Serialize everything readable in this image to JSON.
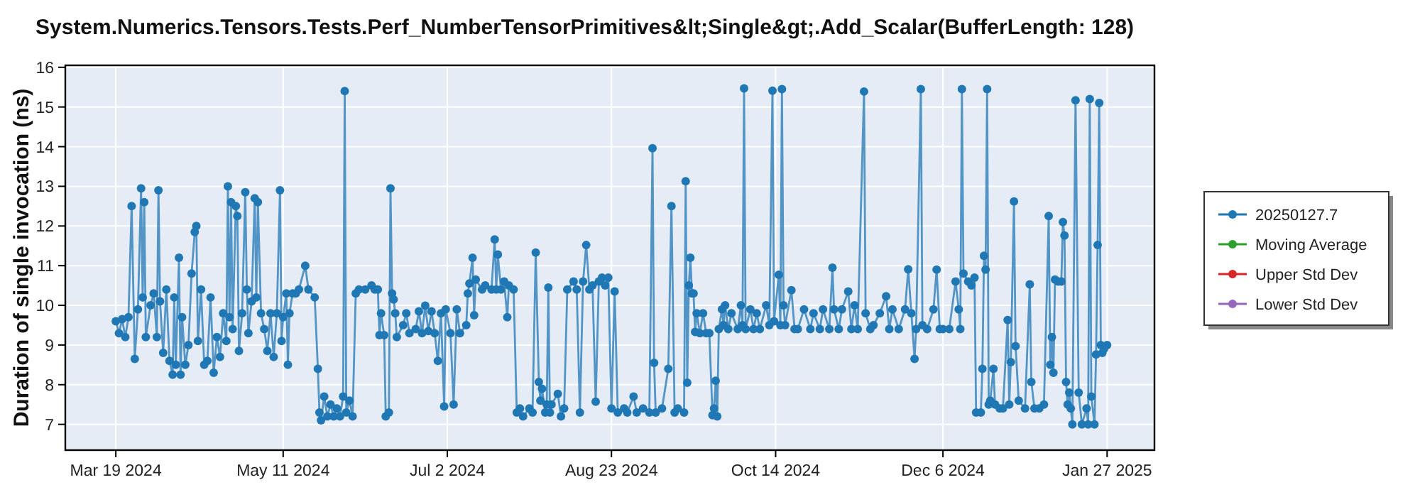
{
  "chart_data": {
    "type": "line",
    "title": "System.Numerics.Tensors.Tests.Perf_NumberTensorPrimitives&lt;Single&gt;.Add_Scalar(BufferLength: 128)",
    "ylabel": "Duration of single invocation (ns)",
    "xlim": [
      "2024-03-03",
      "2025-02-11"
    ],
    "ylim": [
      6.35,
      16.05
    ],
    "xticks": [
      {
        "value": "2024-03-19",
        "label": "Mar 19 2024"
      },
      {
        "value": "2024-05-11",
        "label": "May 11 2024"
      },
      {
        "value": "2024-07-02",
        "label": "Jul 2 2024"
      },
      {
        "value": "2024-08-23",
        "label": "Aug 23 2024"
      },
      {
        "value": "2024-10-14",
        "label": "Oct 14 2024"
      },
      {
        "value": "2024-12-06",
        "label": "Dec 6 2024"
      },
      {
        "value": "2025-01-27",
        "label": "Jan 27 2025"
      }
    ],
    "yticks": [
      7,
      8,
      9,
      10,
      11,
      12,
      13,
      14,
      15,
      16
    ],
    "grid": true,
    "legend": "right",
    "marker": "circle",
    "line_style": "solid",
    "series": [
      {
        "name": "20250127.7",
        "color": "#1f77b4",
        "x": [
          "2024-03-19",
          "2024-03-20",
          "2024-03-21",
          "2024-03-22",
          "2024-03-23",
          "2024-03-24",
          "2024-03-25",
          "2024-03-26",
          "2024-03-27",
          "2024-03-27T12:00",
          "2024-03-28",
          "2024-03-28T12:00",
          "2024-03-30",
          "2024-03-31",
          "2024-04-01",
          "2024-04-01T12:00",
          "2024-04-02",
          "2024-04-03",
          "2024-04-04",
          "2024-04-05",
          "2024-04-06",
          "2024-04-06T12:00",
          "2024-04-07",
          "2024-04-08",
          "2024-04-08T12:00",
          "2024-04-09",
          "2024-04-10",
          "2024-04-11",
          "2024-04-12",
          "2024-04-13",
          "2024-04-13T12:00",
          "2024-04-14",
          "2024-04-15",
          "2024-04-16",
          "2024-04-17",
          "2024-04-18",
          "2024-04-19",
          "2024-04-20",
          "2024-04-21",
          "2024-04-22",
          "2024-04-23",
          "2024-04-23T12:00",
          "2024-04-24",
          "2024-04-24T12:00",
          "2024-04-25",
          "2024-04-26",
          "2024-04-26T12:00",
          "2024-04-27",
          "2024-04-28",
          "2024-04-29",
          "2024-04-29T12:00",
          "2024-04-30",
          "2024-05-01",
          "2024-05-02",
          "2024-05-02T12:00",
          "2024-05-03",
          "2024-05-04",
          "2024-05-05",
          "2024-05-06",
          "2024-05-07",
          "2024-05-08",
          "2024-05-09",
          "2024-05-10",
          "2024-05-10T12:00",
          "2024-05-11",
          "2024-05-12",
          "2024-05-12T12:00",
          "2024-05-13",
          "2024-05-14",
          "2024-05-15",
          "2024-05-16",
          "2024-05-18",
          "2024-05-19",
          "2024-05-21",
          "2024-05-22",
          "2024-05-22T12:00",
          "2024-05-23",
          "2024-05-24",
          "2024-05-25",
          "2024-05-26",
          "2024-05-27",
          "2024-05-28",
          "2024-05-29",
          "2024-05-30",
          "2024-05-30T12:00",
          "2024-05-31",
          "2024-06-01",
          "2024-06-02",
          "2024-06-03",
          "2024-06-04",
          "2024-06-06",
          "2024-06-08",
          "2024-06-09",
          "2024-06-10",
          "2024-06-10T12:00",
          "2024-06-11",
          "2024-06-12",
          "2024-06-12T12:00",
          "2024-06-13T12:00",
          "2024-06-14",
          "2024-06-14T12:00",
          "2024-06-15",
          "2024-06-15T12:00",
          "2024-06-16",
          "2024-06-18",
          "2024-06-19",
          "2024-06-20",
          "2024-06-22",
          "2024-06-23",
          "2024-06-24",
          "2024-06-25",
          "2024-06-26",
          "2024-06-27",
          "2024-06-28",
          "2024-06-29",
          "2024-06-30",
          "2024-07-01",
          "2024-07-01T12:00",
          "2024-07-03",
          "2024-07-04",
          "2024-07-05",
          "2024-07-06",
          "2024-07-08",
          "2024-07-08T12:00",
          "2024-07-09",
          "2024-07-10",
          "2024-07-10T12:00",
          "2024-07-11",
          "2024-07-13",
          "2024-07-14",
          "2024-07-16",
          "2024-07-17",
          "2024-07-17T12:00",
          "2024-07-18",
          "2024-07-19",
          "2024-07-20",
          "2024-07-21",
          "2024-07-21T12:00",
          "2024-07-23",
          "2024-07-24",
          "2024-07-25",
          "2024-07-26",
          "2024-07-28",
          "2024-07-29",
          "2024-07-30",
          "2024-07-31",
          "2024-07-31T12:00",
          "2024-08-01",
          "2024-08-02",
          "2024-08-02T12:00",
          "2024-08-03",
          "2024-08-03T12:00",
          "2024-08-04",
          "2024-08-06",
          "2024-08-07",
          "2024-08-08",
          "2024-08-09",
          "2024-08-11",
          "2024-08-12",
          "2024-08-13",
          "2024-08-14",
          "2024-08-15",
          "2024-08-16",
          "2024-08-17",
          "2024-08-18",
          "2024-08-19",
          "2024-08-20",
          "2024-08-21",
          "2024-08-22",
          "2024-08-23",
          "2024-08-24",
          "2024-08-25",
          "2024-08-27",
          "2024-08-28",
          "2024-08-30",
          "2024-08-31",
          "2024-09-02",
          "2024-09-04",
          "2024-09-05",
          "2024-09-05T12:00",
          "2024-09-06",
          "2024-09-08",
          "2024-09-10",
          "2024-09-11",
          "2024-09-12",
          "2024-09-13",
          "2024-09-15",
          "2024-09-15T12:00",
          "2024-09-16",
          "2024-09-16T12:00",
          "2024-09-17",
          "2024-09-17T12:00",
          "2024-09-18",
          "2024-09-18T12:00",
          "2024-09-19",
          "2024-09-20",
          "2024-09-21",
          "2024-09-22",
          "2024-09-23",
          "2024-09-24",
          "2024-09-24T12:00",
          "2024-09-25",
          "2024-09-25T12:00",
          "2024-09-26",
          "2024-09-27",
          "2024-09-27T12:00",
          "2024-09-28",
          "2024-09-29",
          "2024-09-30",
          "2024-10-02",
          "2024-10-03",
          "2024-10-03T12:00",
          "2024-10-04",
          "2024-10-04T12:00",
          "2024-10-06",
          "2024-10-07",
          "2024-10-08",
          "2024-10-09",
          "2024-10-11",
          "2024-10-12",
          "2024-10-13",
          "2024-10-13T12:00",
          "2024-10-15",
          "2024-10-15T12:00",
          "2024-10-16",
          "2024-10-16T12:00",
          "2024-10-17",
          "2024-10-19",
          "2024-10-20",
          "2024-10-21",
          "2024-10-23",
          "2024-10-25",
          "2024-10-26",
          "2024-10-28",
          "2024-10-29",
          "2024-10-31",
          "2024-11-01",
          "2024-11-01T12:00",
          "2024-11-03",
          "2024-11-04",
          "2024-11-06",
          "2024-11-07",
          "2024-11-08",
          "2024-11-09",
          "2024-11-11",
          "2024-11-11T12:00",
          "2024-11-13",
          "2024-11-14",
          "2024-11-16",
          "2024-11-18",
          "2024-11-19",
          "2024-11-20",
          "2024-11-22",
          "2024-11-24",
          "2024-11-25",
          "2024-11-26",
          "2024-11-27",
          "2024-11-27T12:00",
          "2024-11-29",
          "2024-11-29T12:00",
          "2024-12-01",
          "2024-12-03",
          "2024-12-04",
          "2024-12-05",
          "2024-12-06",
          "2024-12-08",
          "2024-12-10",
          "2024-12-11",
          "2024-12-11T12:00",
          "2024-12-12",
          "2024-12-12T12:00",
          "2024-12-14",
          "2024-12-15",
          "2024-12-16",
          "2024-12-16T12:00",
          "2024-12-18",
          "2024-12-18T12:00",
          "2024-12-19",
          "2024-12-19T12:00",
          "2024-12-20",
          "2024-12-20T12:00",
          "2024-12-21",
          "2024-12-22",
          "2024-12-22T12:00",
          "2024-12-24",
          "2024-12-25",
          "2024-12-26T12:00",
          "2024-12-27",
          "2024-12-27T12:00",
          "2024-12-28T12:00",
          "2024-12-29",
          "2024-12-30",
          "2025-01-01",
          "2025-01-02T12:00",
          "2025-01-03",
          "2025-01-04",
          "2025-01-05T12:00",
          "2025-01-07",
          "2025-01-08T12:00",
          "2025-01-09",
          "2025-01-09T12:00",
          "2025-01-10",
          "2025-01-10T12:00",
          "2025-01-11T12:00",
          "2025-01-12T12:00",
          "2025-01-13",
          "2025-01-13T12:00",
          "2025-01-14",
          "2025-01-14T12:00",
          "2025-01-15",
          "2025-01-15T12:00",
          "2025-01-16",
          "2025-01-17",
          "2025-01-18",
          "2025-01-19",
          "2025-01-20T12:00",
          "2025-01-21",
          "2025-01-21T12:00",
          "2025-01-22",
          "2025-01-23",
          "2025-01-23T12:00",
          "2025-01-24",
          "2025-01-24T12:00",
          "2025-01-25",
          "2025-01-25T12:00",
          "2025-01-26",
          "2025-01-27"
        ],
        "values": [
          9.6,
          9.3,
          9.65,
          9.2,
          9.7,
          12.5,
          8.65,
          9.9,
          12.95,
          10.2,
          12.6,
          9.2,
          10.0,
          10.3,
          9.2,
          12.9,
          10.1,
          8.8,
          10.4,
          8.6,
          8.25,
          10.2,
          8.5,
          11.2,
          8.25,
          9.7,
          8.5,
          9.0,
          10.8,
          11.85,
          12.0,
          9.1,
          10.4,
          8.5,
          8.6,
          10.2,
          8.3,
          9.2,
          8.7,
          9.8,
          9.1,
          13.0,
          9.7,
          12.6,
          9.4,
          12.5,
          12.25,
          8.85,
          9.8,
          12.85,
          10.4,
          9.3,
          10.1,
          12.7,
          10.2,
          12.6,
          9.8,
          9.4,
          8.85,
          9.8,
          8.7,
          9.8,
          12.9,
          9.1,
          9.7,
          10.3,
          8.5,
          9.8,
          10.3,
          10.3,
          10.4,
          11.0,
          10.4,
          10.2,
          8.4,
          7.3,
          7.1,
          7.7,
          7.2,
          7.5,
          7.2,
          7.4,
          7.2,
          7.7,
          15.4,
          7.3,
          7.6,
          7.2,
          10.3,
          10.4,
          10.4,
          10.5,
          10.4,
          10.4,
          9.25,
          9.8,
          9.25,
          7.2,
          7.3,
          12.95,
          10.3,
          10.15,
          9.8,
          9.2,
          9.5,
          9.8,
          9.3,
          9.4,
          9.85,
          9.3,
          9.99,
          9.35,
          9.85,
          9.3,
          8.6,
          9.8,
          7.45,
          9.9,
          9.3,
          7.5,
          9.9,
          9.3,
          9.5,
          10.3,
          10.55,
          11.2,
          9.75,
          10.65,
          10.4,
          10.5,
          10.4,
          11.66,
          10.4,
          11.28,
          10.4,
          10.6,
          9.7,
          10.5,
          10.4,
          7.3,
          7.4,
          7.2,
          7.4,
          7.3,
          11.33,
          8.07,
          7.6,
          7.9,
          7.3,
          7.5,
          10.45,
          7.3,
          7.5,
          7.77,
          7.2,
          7.4,
          10.4,
          10.6,
          10.4,
          7.3,
          10.6,
          11.52,
          10.4,
          10.5,
          7.57,
          10.6,
          10.7,
          10.5,
          10.7,
          7.4,
          10.35,
          7.3,
          7.4,
          7.3,
          7.7,
          7.3,
          7.4,
          7.3,
          13.96,
          8.55,
          7.3,
          7.4,
          8.4,
          12.5,
          7.3,
          7.4,
          7.3,
          13.13,
          8.05,
          10.5,
          11.2,
          10.3,
          10.3,
          9.33,
          9.8,
          9.3,
          9.8,
          9.3,
          9.3,
          7.23,
          7.4,
          8.1,
          7.2,
          9.4,
          9.9,
          9.5,
          10.0,
          9.4,
          9.8,
          9.4,
          10.0,
          9.5,
          15.47,
          9.4,
          9.9,
          9.4,
          9.8,
          9.4,
          10.0,
          9.5,
          15.41,
          9.6,
          10.77,
          9.5,
          15.45,
          10.0,
          9.5,
          10.38,
          9.4,
          9.4,
          9.9,
          9.4,
          9.8,
          9.4,
          9.9,
          9.4,
          10.95,
          9.9,
          9.4,
          9.9,
          10.35,
          9.4,
          10.0,
          9.4,
          15.39,
          9.8,
          9.4,
          9.5,
          9.8,
          10.23,
          9.4,
          9.9,
          9.4,
          9.9,
          10.91,
          9.8,
          8.65,
          9.4,
          15.45,
          9.5,
          9.4,
          9.9,
          10.9,
          9.4,
          9.4,
          9.4,
          10.6,
          9.9,
          9.4,
          15.45,
          10.8,
          10.6,
          10.5,
          10.7,
          7.3,
          7.3,
          8.4,
          11.25,
          10.9,
          15.45,
          7.5,
          7.6,
          8.4,
          7.5,
          7.4,
          7.4,
          9.63,
          7.5,
          8.57,
          12.62,
          8.97,
          7.6,
          7.4,
          10.53,
          8.07,
          7.4,
          7.4,
          7.5,
          12.25,
          8.5,
          9.2,
          8.3,
          10.65,
          10.6,
          10.6,
          12.1,
          11.76,
          8.07,
          7.5,
          7.8,
          7.4,
          7.0,
          15.17,
          7.8,
          7.0,
          7.4,
          7.0,
          15.2,
          7.7,
          7.0,
          8.76,
          11.52,
          15.1,
          9.0,
          8.8,
          8.9,
          9.0
        ]
      },
      {
        "name": "Moving Average",
        "color": "#2ca02c"
      },
      {
        "name": "Upper Std Dev",
        "color": "#d62728"
      },
      {
        "name": "Lower Std Dev",
        "color": "#9467bd"
      }
    ]
  }
}
